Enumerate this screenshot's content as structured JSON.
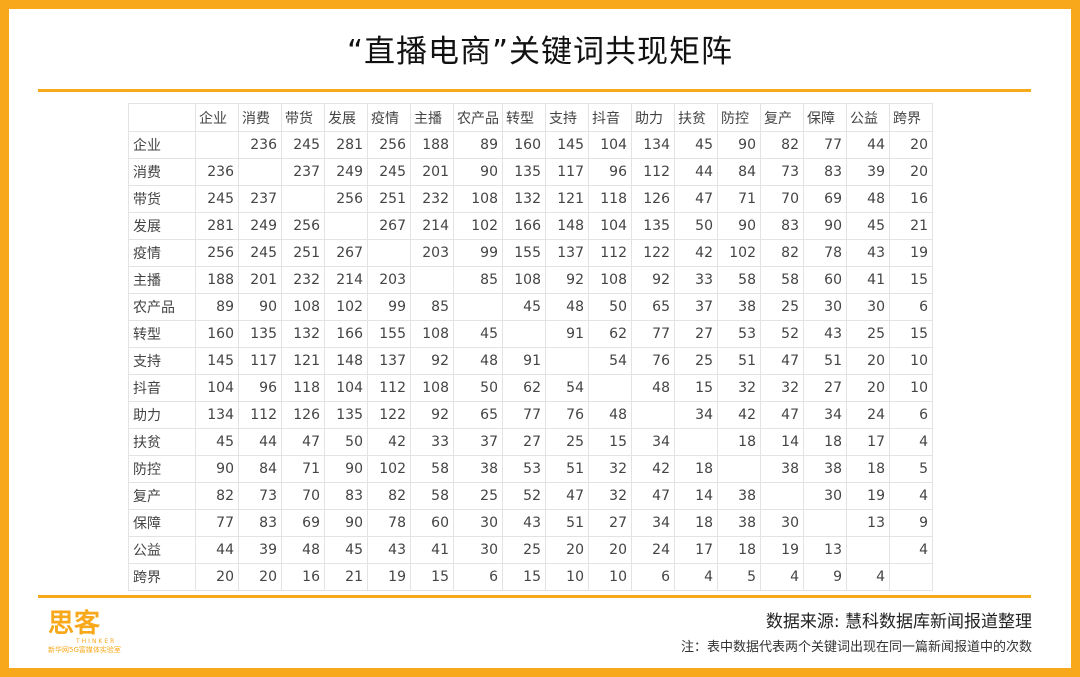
{
  "title": "“直播电商”关键词共现矩阵",
  "colors": {
    "accent": "#f7a81b"
  },
  "table": {
    "columns": [
      "企业",
      "消费",
      "带货",
      "发展",
      "疫情",
      "主播",
      "农产品",
      "转型",
      "支持",
      "抖音",
      "助力",
      "扶贫",
      "防控",
      "复产",
      "保障",
      "公益",
      "跨界"
    ],
    "rows": [
      {
        "label": "企业",
        "values": [
          "",
          "236",
          "245",
          "281",
          "256",
          "188",
          "89",
          "160",
          "145",
          "104",
          "134",
          "45",
          "90",
          "82",
          "77",
          "44",
          "20"
        ]
      },
      {
        "label": "消费",
        "values": [
          "236",
          "",
          "237",
          "249",
          "245",
          "201",
          "90",
          "135",
          "117",
          "96",
          "112",
          "44",
          "84",
          "73",
          "83",
          "39",
          "20"
        ]
      },
      {
        "label": "带货",
        "values": [
          "245",
          "237",
          "",
          "256",
          "251",
          "232",
          "108",
          "132",
          "121",
          "118",
          "126",
          "47",
          "71",
          "70",
          "69",
          "48",
          "16"
        ]
      },
      {
        "label": "发展",
        "values": [
          "281",
          "249",
          "256",
          "",
          "267",
          "214",
          "102",
          "166",
          "148",
          "104",
          "135",
          "50",
          "90",
          "83",
          "90",
          "45",
          "21"
        ]
      },
      {
        "label": "疫情",
        "values": [
          "256",
          "245",
          "251",
          "267",
          "",
          "203",
          "99",
          "155",
          "137",
          "112",
          "122",
          "42",
          "102",
          "82",
          "78",
          "43",
          "19"
        ]
      },
      {
        "label": "主播",
        "values": [
          "188",
          "201",
          "232",
          "214",
          "203",
          "",
          "85",
          "108",
          "92",
          "108",
          "92",
          "33",
          "58",
          "58",
          "60",
          "41",
          "15"
        ]
      },
      {
        "label": "农产品",
        "values": [
          "89",
          "90",
          "108",
          "102",
          "99",
          "85",
          "",
          "45",
          "48",
          "50",
          "65",
          "37",
          "38",
          "25",
          "30",
          "30",
          "6"
        ]
      },
      {
        "label": "转型",
        "values": [
          "160",
          "135",
          "132",
          "166",
          "155",
          "108",
          "45",
          "",
          "91",
          "62",
          "77",
          "27",
          "53",
          "52",
          "43",
          "25",
          "15"
        ]
      },
      {
        "label": "支持",
        "values": [
          "145",
          "117",
          "121",
          "148",
          "137",
          "92",
          "48",
          "91",
          "",
          "54",
          "76",
          "25",
          "51",
          "47",
          "51",
          "20",
          "10"
        ]
      },
      {
        "label": "抖音",
        "values": [
          "104",
          "96",
          "118",
          "104",
          "112",
          "108",
          "50",
          "62",
          "54",
          "",
          "48",
          "15",
          "32",
          "32",
          "27",
          "20",
          "10"
        ]
      },
      {
        "label": "助力",
        "values": [
          "134",
          "112",
          "126",
          "135",
          "122",
          "92",
          "65",
          "77",
          "76",
          "48",
          "",
          "34",
          "42",
          "47",
          "34",
          "24",
          "6"
        ]
      },
      {
        "label": "扶贫",
        "values": [
          "45",
          "44",
          "47",
          "50",
          "42",
          "33",
          "37",
          "27",
          "25",
          "15",
          "34",
          "",
          "18",
          "14",
          "18",
          "17",
          "4"
        ]
      },
      {
        "label": "防控",
        "values": [
          "90",
          "84",
          "71",
          "90",
          "102",
          "58",
          "38",
          "53",
          "51",
          "32",
          "42",
          "18",
          "",
          "38",
          "38",
          "18",
          "5"
        ]
      },
      {
        "label": "复产",
        "values": [
          "82",
          "73",
          "70",
          "83",
          "82",
          "58",
          "25",
          "52",
          "47",
          "32",
          "47",
          "14",
          "38",
          "",
          "30",
          "19",
          "4"
        ]
      },
      {
        "label": "保障",
        "values": [
          "77",
          "83",
          "69",
          "90",
          "78",
          "60",
          "30",
          "43",
          "51",
          "27",
          "34",
          "18",
          "38",
          "30",
          "",
          "13",
          "9"
        ]
      },
      {
        "label": "公益",
        "values": [
          "44",
          "39",
          "48",
          "45",
          "43",
          "41",
          "30",
          "25",
          "20",
          "20",
          "24",
          "17",
          "18",
          "19",
          "13",
          "",
          "4"
        ]
      },
      {
        "label": "跨界",
        "values": [
          "20",
          "20",
          "16",
          "21",
          "19",
          "15",
          "6",
          "15",
          "10",
          "10",
          "6",
          "4",
          "5",
          "4",
          "9",
          "4",
          ""
        ]
      }
    ]
  },
  "footer": {
    "source": "数据来源: 慧科数据库新闻报道整理",
    "note": "注：表中数据代表两个关键词出现在同一篇新闻报道中的次数",
    "logo_text": "思客",
    "logo_sub": "THINKER",
    "logo_tag": "新华网5G富媒体实验室"
  }
}
